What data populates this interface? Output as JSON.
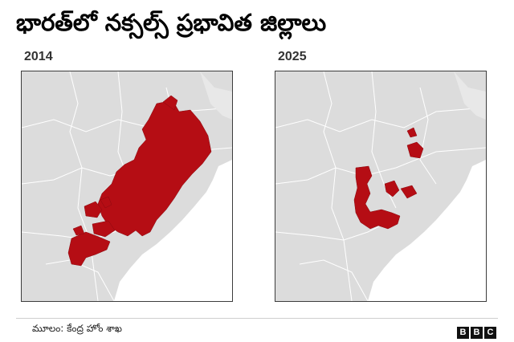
{
  "title": "భారత్‌లో నక్సల్స్ ప్రభావిత జిల్లాలు",
  "maps": [
    {
      "year": "2014"
    },
    {
      "year": "2025"
    }
  ],
  "source": "మూలం: కేంద్ర హోం శాఖ",
  "logo": [
    "B",
    "B",
    "C"
  ],
  "colors": {
    "affected": "#b50d14",
    "state_fill": "#dcdcdc",
    "state_border": "#ffffff",
    "water": "#ffffff"
  }
}
